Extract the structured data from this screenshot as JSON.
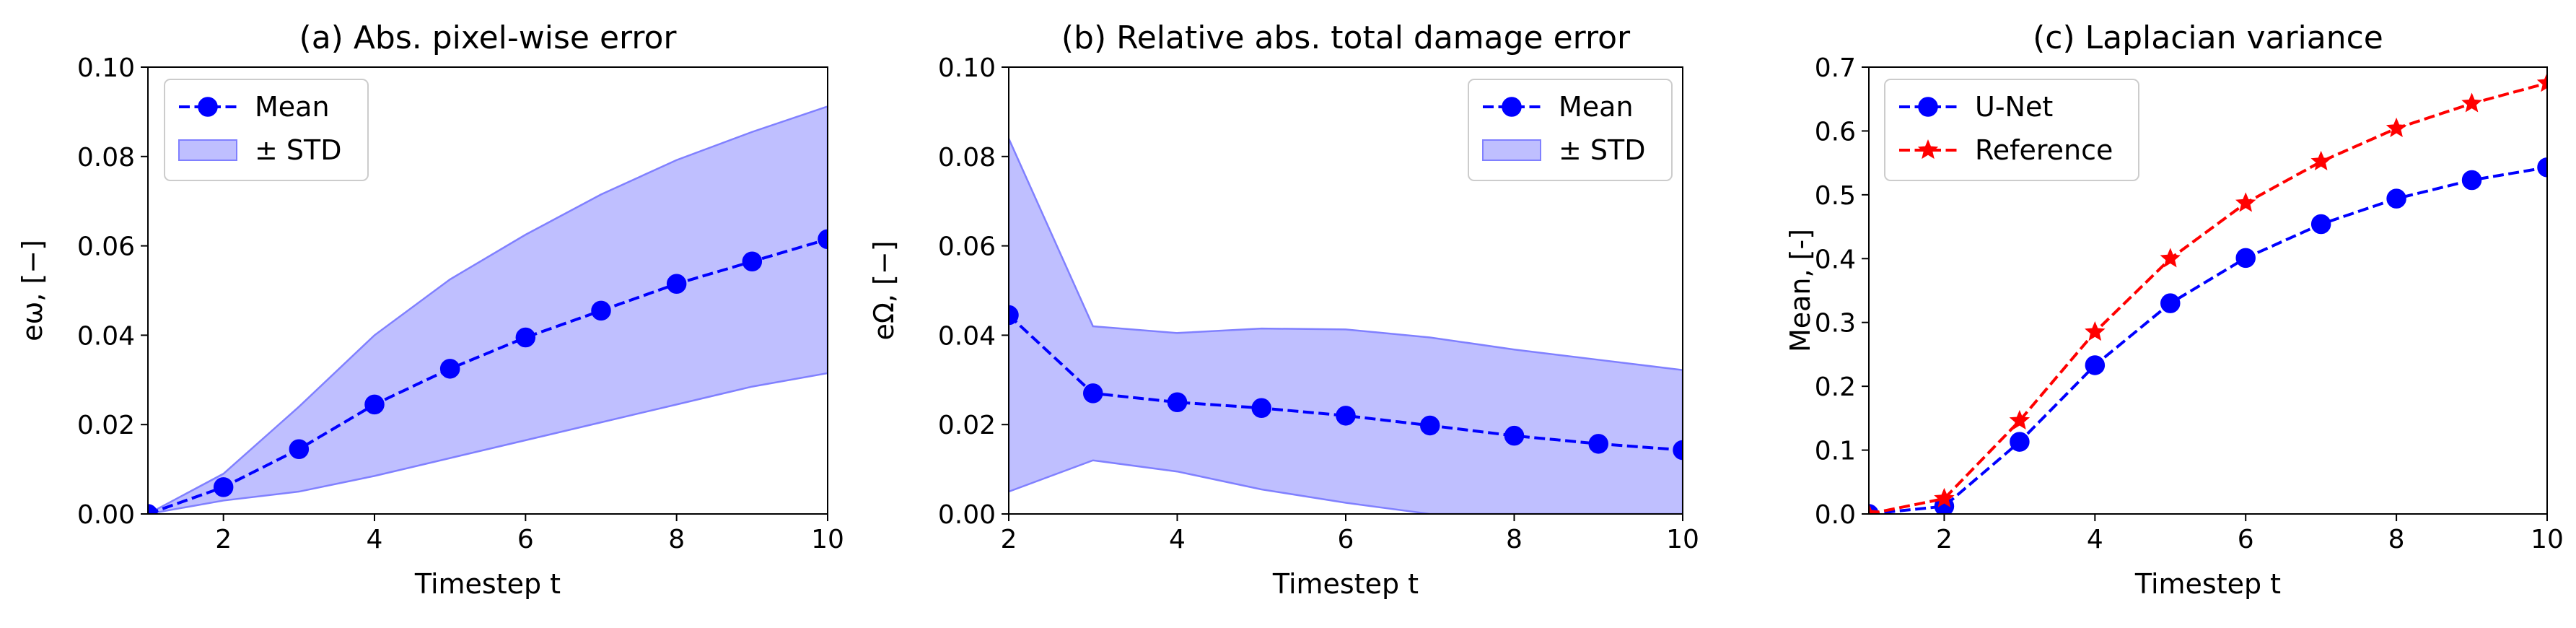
{
  "chart_data": [
    {
      "type": "line",
      "title": "(a) Abs. pixel-wise error",
      "xlabel": "Timestep t",
      "ylabel": "eω, [−]",
      "xlim": [
        1,
        10
      ],
      "ylim": [
        0,
        0.1
      ],
      "xticks": [
        "2",
        "4",
        "6",
        "8",
        "10"
      ],
      "yticks": [
        "0.00",
        "0.02",
        "0.04",
        "0.06",
        "0.08",
        "0.10"
      ],
      "legend_position": "upper left",
      "grid": false,
      "x": [
        1,
        2,
        3,
        4,
        5,
        6,
        7,
        8,
        9,
        10
      ],
      "series": [
        {
          "name": "Mean",
          "color": "#0000ff",
          "style": "dashed",
          "marker": "circle",
          "values": [
            0.0,
            0.006,
            0.0145,
            0.0245,
            0.0325,
            0.0395,
            0.0455,
            0.0515,
            0.0565,
            0.0615
          ]
        }
      ],
      "band": {
        "name": "± STD",
        "color": "#8080ff",
        "lower": [
          0.0,
          0.003,
          0.005,
          0.0085,
          0.0125,
          0.0165,
          0.0205,
          0.0245,
          0.0285,
          0.0315
        ],
        "upper": [
          0.0,
          0.009,
          0.024,
          0.04,
          0.0525,
          0.0625,
          0.0715,
          0.0792,
          0.0855,
          0.0912
        ]
      }
    },
    {
      "type": "line",
      "title": "(b) Relative abs. total damage error",
      "xlabel": "Timestep t",
      "ylabel": "eΩ, [−]",
      "xlim": [
        2,
        10
      ],
      "ylim": [
        0,
        0.1
      ],
      "xticks": [
        "2",
        "4",
        "6",
        "8",
        "10"
      ],
      "yticks": [
        "0.00",
        "0.02",
        "0.04",
        "0.06",
        "0.08",
        "0.10"
      ],
      "legend_position": "upper right",
      "grid": false,
      "x": [
        2,
        3,
        4,
        5,
        6,
        7,
        8,
        9,
        10
      ],
      "series": [
        {
          "name": "Mean",
          "color": "#0000ff",
          "style": "dashed",
          "marker": "circle",
          "values": [
            0.0445,
            0.027,
            0.025,
            0.0237,
            0.022,
            0.0198,
            0.0175,
            0.0157,
            0.0143
          ]
        }
      ],
      "band": {
        "name": "± STD",
        "color": "#8080ff",
        "lower": [
          0.005,
          0.012,
          0.0095,
          0.0055,
          0.0025,
          0.0,
          0.0,
          0.0,
          0.0
        ],
        "upper": [
          0.084,
          0.042,
          0.0405,
          0.0415,
          0.0413,
          0.0395,
          0.0368,
          0.0345,
          0.0322
        ]
      }
    },
    {
      "type": "line",
      "title": "(c) Laplacian variance",
      "xlabel": "Timestep t",
      "ylabel": "Mean, [-]",
      "xlim": [
        1,
        10
      ],
      "ylim": [
        0,
        0.7
      ],
      "xticks": [
        "2",
        "4",
        "6",
        "8",
        "10"
      ],
      "yticks": [
        "0.0",
        "0.1",
        "0.2",
        "0.3",
        "0.4",
        "0.5",
        "0.6",
        "0.7"
      ],
      "legend_position": "upper left",
      "grid": false,
      "x": [
        1,
        2,
        3,
        4,
        5,
        6,
        7,
        8,
        9,
        10
      ],
      "series": [
        {
          "name": "U-Net",
          "color": "#0000ff",
          "style": "dashed",
          "marker": "circle",
          "values": [
            0.0,
            0.012,
            0.113,
            0.233,
            0.33,
            0.401,
            0.454,
            0.494,
            0.523,
            0.543
          ]
        },
        {
          "name": "Reference",
          "color": "#ff0000",
          "style": "dashed",
          "marker": "star",
          "values": [
            0.0,
            0.024,
            0.146,
            0.285,
            0.4,
            0.487,
            0.552,
            0.604,
            0.643,
            0.675
          ]
        }
      ]
    }
  ]
}
